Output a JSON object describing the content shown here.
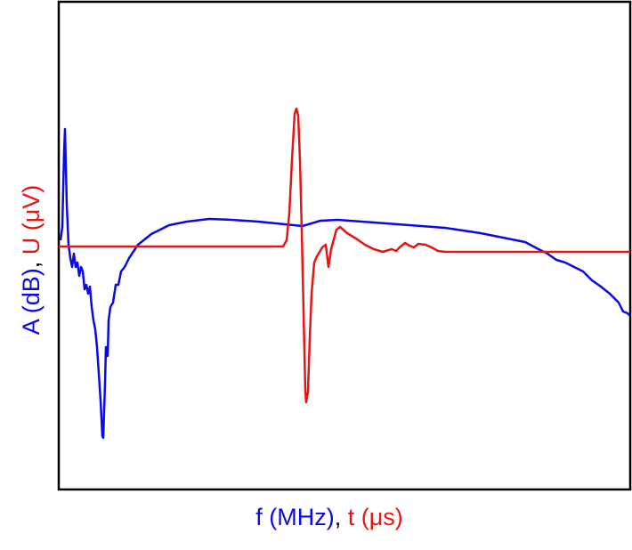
{
  "chart_data": {
    "type": "line",
    "x_label": [
      "f (MHz)",
      ", ",
      "t (μs)"
    ],
    "y_label": [
      "A (dB)",
      ", ",
      "U (μV)"
    ],
    "xlim": [
      0,
      642
    ],
    "ylim": [
      0,
      548
    ],
    "series": [
      {
        "color": "#0a0ae6",
        "x": [
          2,
          4,
          6,
          7,
          9,
          11,
          13,
          15,
          17,
          19,
          21,
          23,
          25,
          27,
          29,
          31,
          33,
          35,
          37,
          39,
          41,
          43,
          45,
          47,
          49,
          50,
          52,
          53,
          55,
          56,
          58,
          61,
          64,
          67,
          70,
          74,
          79,
          89,
          104,
          124,
          144,
          169,
          194,
          224,
          254,
          274,
          294,
          314,
          354,
          394,
          434,
          474,
          504,
          524,
          539,
          549,
          559,
          569,
          579,
          589,
          599,
          609,
          619,
          629,
          634,
          639,
          642
        ],
        "values": [
          280,
          295,
          380,
          405,
          320,
          275,
          260,
          250,
          265,
          250,
          255,
          240,
          250,
          245,
          225,
          230,
          220,
          228,
          205,
          190,
          180,
          160,
          130,
          100,
          60,
          58,
          120,
          160,
          150,
          190,
          205,
          210,
          230,
          230,
          245,
          250,
          260,
          275,
          287,
          297,
          301,
          304,
          303,
          301,
          298,
          296,
          302,
          303,
          300,
          297,
          294,
          288,
          282,
          278,
          270,
          265,
          258,
          255,
          250,
          245,
          235,
          228,
          220,
          210,
          200,
          198,
          195
        ]
      },
      {
        "color": "#e61414",
        "x": [
          0,
          252,
          256,
          259,
          262,
          265,
          267,
          269,
          271,
          273,
          275,
          277,
          278,
          280,
          282,
          284,
          287,
          290,
          296,
          300,
          303,
          306,
          312,
          316,
          324,
          334,
          344,
          354,
          364,
          374,
          379,
          384,
          389,
          394,
          399,
          404,
          412,
          419,
          426,
          434,
          642
        ],
        "values": [
          273,
          273,
          280,
          310,
          370,
          422,
          428,
          420,
          370,
          290,
          200,
          110,
          98,
          110,
          170,
          220,
          255,
          262,
          272,
          275,
          250,
          270,
          292,
          295,
          288,
          282,
          275,
          270,
          267,
          270,
          268,
          273,
          277,
          274,
          272,
          276,
          275,
          272,
          268,
          267,
          267
        ]
      }
    ]
  }
}
